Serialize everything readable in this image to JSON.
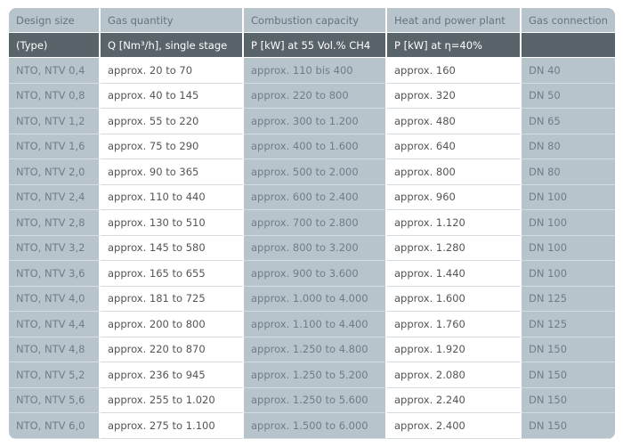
{
  "headers": [
    "Design size",
    "Gas quantity",
    "Combustion capacity",
    "Heat and power plant",
    "Gas connection"
  ],
  "subheaders": [
    "(Type)",
    "Q [Nm³/h], single stage",
    "P [kW] at 55 Vol.% CH4",
    "P [kW] at η=40%",
    ""
  ],
  "rows": [
    [
      "NTO, NTV 0,4",
      "approx. 20 to 70",
      "approx. 110 bis 400",
      "approx. 160",
      "DN 40"
    ],
    [
      "NTO, NTV 0,8",
      "approx. 40 to 145",
      "approx. 220 to 800",
      "approx. 320",
      "DN 50"
    ],
    [
      "NTO, NTV 1,2",
      "approx. 55 to 220",
      "approx. 300 to 1.200",
      "approx. 480",
      "DN 65"
    ],
    [
      "NTO, NTV 1,6",
      "approx. 75 to 290",
      "approx. 400 to 1.600",
      "approx. 640",
      "DN 80"
    ],
    [
      "NTO, NTV 2,0",
      "approx. 90 to 365",
      "approx. 500 to 2.000",
      "approx. 800",
      "DN 80"
    ],
    [
      "NTO, NTV 2,4",
      "approx. 110 to 440",
      "approx. 600 to 2.400",
      "approx. 960",
      "DN 100"
    ],
    [
      "NTO, NTV 2,8",
      "approx. 130 to 510",
      "approx. 700 to 2.800",
      "approx. 1.120",
      "DN 100"
    ],
    [
      "NTO, NTV 3,2",
      "approx. 145 to 580",
      "approx. 800 to 3.200",
      "approx. 1.280",
      "DN 100"
    ],
    [
      "NTO, NTV 3,6",
      "approx. 165 to 655",
      "approx. 900 to 3.600",
      "approx. 1.440",
      "DN 100"
    ],
    [
      "NTO, NTV 4,0",
      "approx. 181 to 725",
      "approx. 1.000 to 4.000",
      "approx. 1.600",
      "DN 125"
    ],
    [
      "NTO, NTV 4,4",
      "approx. 200 to 800",
      "approx. 1.100 to 4.400",
      "approx. 1.760",
      "DN 125"
    ],
    [
      "NTO, NTV 4,8",
      "approx. 220 to 870",
      "approx. 1.250 to 4.800",
      "approx. 1.920",
      "DN 150"
    ],
    [
      "NTO, NTV 5,2",
      "approx. 236 to 945",
      "approx. 1.250 to 5.200",
      "approx. 2.080",
      "DN 150"
    ],
    [
      "NTO, NTV 5,6",
      "approx. 255 to 1.020",
      "approx. 1.250 to 5.600",
      "approx. 2.240",
      "DN 150"
    ],
    [
      "NTO, NTV 6,0",
      "approx. 275 to 1.100",
      "approx. 1.500 to 6.000",
      "approx. 2.400",
      "DN 150"
    ]
  ],
  "colors": {
    "gray_column": "#b8c4cc",
    "dark_header": "#59636a",
    "white_column": "#ffffff"
  }
}
